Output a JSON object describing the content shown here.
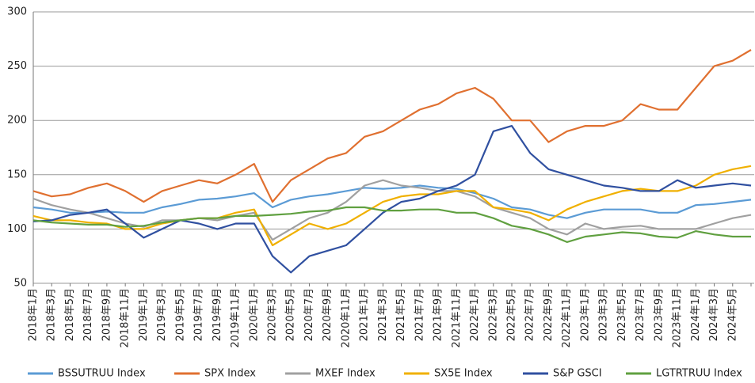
{
  "chart_data": {
    "type": "line",
    "categories": [
      "2018年1月",
      "2018年3月",
      "2018年5月",
      "2018年7月",
      "2018年9月",
      "2018年11月",
      "2019年1月",
      "2019年3月",
      "2019年5月",
      "2019年7月",
      "2019年9月",
      "2019年11月",
      "2020年1月",
      "2020年3月",
      "2020年5月",
      "2020年7月",
      "2020年9月",
      "2020年11月",
      "2021年1月",
      "2021年3月",
      "2021年5月",
      "2021年7月",
      "2021年9月",
      "2021年11月",
      "2022年1月",
      "2022年3月",
      "2022年5月",
      "2022年7月",
      "2022年9月",
      "2022年11月",
      "2023年1月",
      "2023年3月",
      "2023年5月",
      "2023年7月",
      "2023年9月",
      "2023年11月",
      "2024年1月",
      "2024年3月",
      "2024年5月",
      null
    ],
    "series": [
      {
        "name": "BSSUTRUU Index",
        "color": "#5b9bd5",
        "values": [
          120,
          118,
          115,
          115,
          116,
          115,
          115,
          120,
          123,
          127,
          128,
          130,
          133,
          120,
          127,
          130,
          132,
          135,
          138,
          137,
          138,
          140,
          138,
          137,
          133,
          128,
          120,
          118,
          113,
          110,
          115,
          118,
          118,
          118,
          115,
          115,
          122,
          123,
          125,
          127
        ]
      },
      {
        "name": "SPX Index",
        "color": "#e07030",
        "values": [
          135,
          130,
          132,
          138,
          142,
          135,
          125,
          135,
          140,
          145,
          142,
          150,
          160,
          125,
          145,
          155,
          165,
          170,
          185,
          190,
          200,
          210,
          215,
          225,
          230,
          220,
          200,
          200,
          180,
          190,
          195,
          195,
          200,
          215,
          210,
          210,
          230,
          250,
          255,
          265
        ]
      },
      {
        "name": "MXEF Index",
        "color": "#a0a0a0",
        "values": [
          128,
          122,
          118,
          115,
          110,
          105,
          102,
          108,
          108,
          110,
          108,
          112,
          115,
          90,
          100,
          110,
          115,
          125,
          140,
          145,
          140,
          138,
          135,
          135,
          130,
          120,
          115,
          110,
          100,
          95,
          105,
          100,
          102,
          103,
          100,
          100,
          100,
          105,
          110,
          113
        ]
      },
      {
        "name": "SX5E Index",
        "color": "#f0b000",
        "values": [
          112,
          108,
          108,
          106,
          105,
          100,
          100,
          105,
          108,
          110,
          110,
          115,
          118,
          85,
          95,
          105,
          100,
          105,
          115,
          125,
          130,
          132,
          132,
          135,
          135,
          120,
          118,
          115,
          108,
          118,
          125,
          130,
          135,
          137,
          135,
          135,
          140,
          150,
          155,
          158
        ]
      },
      {
        "name": "S&P GSCI",
        "color": "#3050a0",
        "values": [
          107,
          108,
          113,
          115,
          118,
          105,
          92,
          100,
          108,
          105,
          100,
          105,
          105,
          75,
          60,
          75,
          80,
          85,
          100,
          115,
          125,
          128,
          135,
          140,
          150,
          190,
          195,
          170,
          155,
          150,
          145,
          140,
          138,
          135,
          135,
          145,
          138,
          140,
          142,
          140
        ]
      },
      {
        "name": "LGTRTRUU Index",
        "color": "#60a040",
        "values": [
          108,
          106,
          105,
          104,
          104,
          102,
          103,
          106,
          108,
          110,
          110,
          112,
          112,
          113,
          114,
          116,
          117,
          120,
          120,
          117,
          117,
          118,
          118,
          115,
          115,
          110,
          103,
          100,
          95,
          88,
          93,
          95,
          97,
          96,
          93,
          92,
          98,
          95,
          93,
          93
        ]
      }
    ],
    "ylim": [
      50,
      300
    ],
    "yticks": [
      50,
      100,
      150,
      200,
      250,
      300
    ],
    "grid": true,
    "legend": "bottom"
  }
}
